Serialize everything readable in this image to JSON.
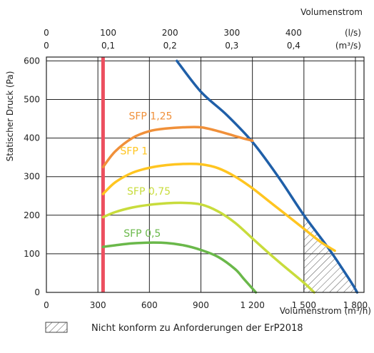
{
  "chart_data": {
    "type": "line",
    "xlabel": "Volumenstrom (m³/h)",
    "ylabel": "Statischer Druck (Pa)",
    "top_axis_title": "Volumenstrom",
    "top_axis_unit_ls": "(l/s)",
    "top_axis_unit_m3s": "(m³/s)",
    "xlim": [
      0,
      1850
    ],
    "ylim": [
      0,
      610
    ],
    "x_ticks": [
      {
        "value": 0,
        "label": "0"
      },
      {
        "value": 300,
        "label": "300"
      },
      {
        "value": 600,
        "label": "600"
      },
      {
        "value": 900,
        "label": "900"
      },
      {
        "value": 1200,
        "label": "1 200"
      },
      {
        "value": 1500,
        "label": "1 500"
      },
      {
        "value": 1800,
        "label": "1 800"
      }
    ],
    "y_ticks": [
      {
        "value": 0,
        "label": "0"
      },
      {
        "value": 100,
        "label": "100"
      },
      {
        "value": 200,
        "label": "200"
      },
      {
        "value": 300,
        "label": "300"
      },
      {
        "value": 400,
        "label": "400"
      },
      {
        "value": 500,
        "label": "500"
      },
      {
        "value": 600,
        "label": "600"
      }
    ],
    "top_ticks_ls": [
      {
        "value": 0,
        "label": "0"
      },
      {
        "value": 360,
        "label": "100"
      },
      {
        "value": 720,
        "label": "200"
      },
      {
        "value": 1080,
        "label": "300"
      },
      {
        "value": 1440,
        "label": "400"
      }
    ],
    "top_ticks_m3s": [
      {
        "value": 0,
        "label": "0"
      },
      {
        "value": 360,
        "label": "0,1"
      },
      {
        "value": 720,
        "label": "0,2"
      },
      {
        "value": 1080,
        "label": "0,3"
      },
      {
        "value": 1440,
        "label": "0,4"
      }
    ],
    "grid": true,
    "series": [
      {
        "name": "",
        "color": "#1f5fa8",
        "points": [
          [
            760,
            600
          ],
          [
            900,
            520
          ],
          [
            1050,
            460
          ],
          [
            1200,
            390
          ],
          [
            1350,
            300
          ],
          [
            1500,
            200
          ],
          [
            1650,
            110
          ],
          [
            1770,
            30
          ],
          [
            1810,
            0
          ]
        ]
      },
      {
        "name": "SFP 1,25",
        "color": "#f0903a",
        "points": [
          [
            330,
            325
          ],
          [
            400,
            365
          ],
          [
            500,
            400
          ],
          [
            600,
            418
          ],
          [
            700,
            425
          ],
          [
            800,
            428
          ],
          [
            900,
            428
          ],
          [
            1000,
            418
          ],
          [
            1100,
            405
          ],
          [
            1200,
            393
          ]
        ]
      },
      {
        "name": "SFP 1",
        "color": "#ffc520",
        "points": [
          [
            330,
            255
          ],
          [
            400,
            285
          ],
          [
            500,
            310
          ],
          [
            600,
            323
          ],
          [
            700,
            330
          ],
          [
            800,
            333
          ],
          [
            900,
            332
          ],
          [
            1000,
            322
          ],
          [
            1100,
            300
          ],
          [
            1200,
            270
          ],
          [
            1300,
            235
          ],
          [
            1400,
            200
          ],
          [
            1500,
            165
          ],
          [
            1600,
            130
          ],
          [
            1680,
            108
          ]
        ]
      },
      {
        "name": "SFP 0,75",
        "color": "#c8dc3c",
        "points": [
          [
            330,
            195
          ],
          [
            400,
            208
          ],
          [
            500,
            220
          ],
          [
            600,
            227
          ],
          [
            700,
            231
          ],
          [
            800,
            232
          ],
          [
            900,
            228
          ],
          [
            1000,
            210
          ],
          [
            1100,
            180
          ],
          [
            1200,
            140
          ],
          [
            1300,
            100
          ],
          [
            1400,
            62
          ],
          [
            1500,
            25
          ],
          [
            1560,
            0
          ]
        ]
      },
      {
        "name": "SFP 0,5",
        "color": "#6ab84a",
        "points": [
          [
            330,
            118
          ],
          [
            400,
            122
          ],
          [
            500,
            127
          ],
          [
            600,
            129
          ],
          [
            700,
            128
          ],
          [
            800,
            122
          ],
          [
            900,
            110
          ],
          [
            1000,
            92
          ],
          [
            1100,
            60
          ],
          [
            1150,
            35
          ],
          [
            1220,
            0
          ]
        ]
      }
    ],
    "min_line": {
      "x": 330,
      "color": "#ec4f5f"
    },
    "nonconform_region": {
      "x_start": 1500,
      "x_end": 1810,
      "upper_curve": "blue"
    },
    "legend_text": "Nicht konform zu Anforderungen der ErP2018",
    "colors": {
      "axis": "#222222",
      "background": "#ffffff"
    }
  }
}
